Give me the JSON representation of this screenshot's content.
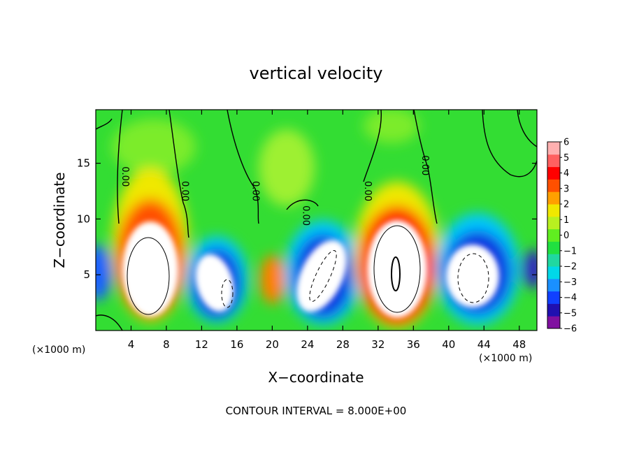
{
  "chart_data": {
    "type": "heatmap",
    "title": "vertical velocity",
    "xlabel": "X−coordinate",
    "ylabel": "Z−coordinate",
    "x_unit_label": "(×1000 m)",
    "x_unit_label_right": "(×1000 m)",
    "xlim": [
      0,
      50
    ],
    "ylim": [
      0,
      19.8
    ],
    "x_ticks": [
      4,
      8,
      12,
      16,
      20,
      24,
      28,
      32,
      36,
      40,
      44,
      48
    ],
    "x_tick_labels": [
      "4",
      "8",
      "12",
      "16",
      "20",
      "24",
      "28",
      "32",
      "36",
      "40",
      "44",
      "48"
    ],
    "y_ticks": [
      5,
      10,
      15
    ],
    "y_tick_labels": [
      "5",
      "10",
      "15"
    ],
    "colorbar": {
      "min": -6,
      "max": 6,
      "tick_labels": [
        "6",
        "5",
        "4",
        "3",
        "2",
        "1",
        "0",
        "−1",
        "−2",
        "−3",
        "−4",
        "−5",
        "−6"
      ],
      "colors_bottom_to_top": [
        "#8010a0",
        "#2010b0",
        "#1040ff",
        "#1a90ff",
        "#00d8e8",
        "#20d8a0",
        "#20e040",
        "#60ee20",
        "#b8f020",
        "#f0e800",
        "#ffa000",
        "#ff5000",
        "#ff0000",
        "#ff6060",
        "#ffb0b0"
      ]
    },
    "contour_labels": [
      {
        "text": "0.00",
        "x": 3.0,
        "z": 13.8
      },
      {
        "text": "0.00",
        "x": 9.8,
        "z": 12.5
      },
      {
        "text": "0.00",
        "x": 17.8,
        "z": 12.5
      },
      {
        "text": "0.00",
        "x": 23.5,
        "z": 10.3
      },
      {
        "text": "0.00",
        "x": 30.5,
        "z": 12.5
      },
      {
        "text": "0.00",
        "x": 37.0,
        "z": 14.8
      }
    ],
    "annotation": "CONTOUR INTERVAL = 8.000E+00",
    "updrafts": [
      {
        "x": 6.0,
        "z": 5.5,
        "peak": 8
      },
      {
        "x": 33.5,
        "z": 5.5,
        "peak": 9
      }
    ],
    "downdrafts": [
      {
        "x": 14.0,
        "z": 4.5,
        "peak": -8
      },
      {
        "x": 26.0,
        "z": 5.0,
        "peak": -8
      },
      {
        "x": 43.5,
        "z": 5.2,
        "peak": -8
      }
    ]
  }
}
